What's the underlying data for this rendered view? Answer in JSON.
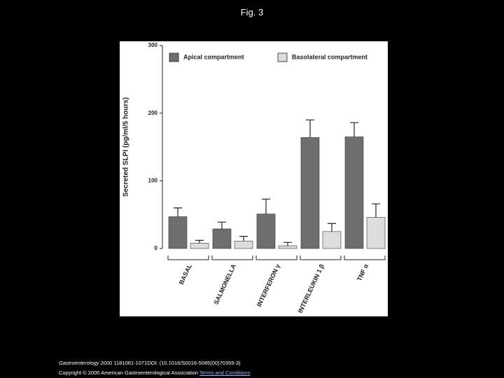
{
  "slide_title": "Fig. 3",
  "chart_data": {
    "type": "bar",
    "ylabel": "Secreted SLPI (pg/ml/5 hours)",
    "categories": [
      "BASAL",
      "SALMONELLA",
      "INTERFERON γ",
      "INTERLEUKIN 1 β",
      "TNF α"
    ],
    "series": [
      {
        "name": "Apical compartment",
        "color": "#6e6e6e",
        "values": [
          47,
          29,
          51,
          164,
          165
        ],
        "errors": [
          13,
          10,
          22,
          26,
          21
        ]
      },
      {
        "name": "Basolateral compartment",
        "color": "#dcdcdc",
        "values": [
          8,
          11,
          4,
          25,
          46
        ],
        "errors": [
          4,
          7,
          5,
          12,
          20
        ]
      }
    ],
    "ylim": [
      0,
      300
    ],
    "yticks": [
      0,
      100,
      200,
      300
    ],
    "legend": "top",
    "grid": false
  },
  "citation": {
    "journal": "Gastroenterology",
    "text": " 2000 1181061-1071DOI: (10.1016/S0016-5085(00)70359-3)"
  },
  "copyright": "Copyright © 2000 American Gastroenterological Association",
  "link": "Terms and Conditions"
}
